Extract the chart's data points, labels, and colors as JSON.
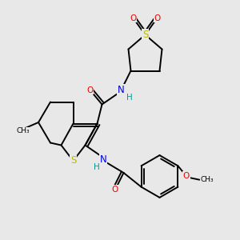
{
  "background_color": "#e8e8e8",
  "bond_color": "#000000",
  "bond_width": 1.4,
  "atom_colors": {
    "C": "#000000",
    "N": "#0000ee",
    "O": "#ee0000",
    "S": "#bbbb00",
    "H": "#009999"
  },
  "figsize": [
    3.0,
    3.0
  ],
  "dpi": 100
}
